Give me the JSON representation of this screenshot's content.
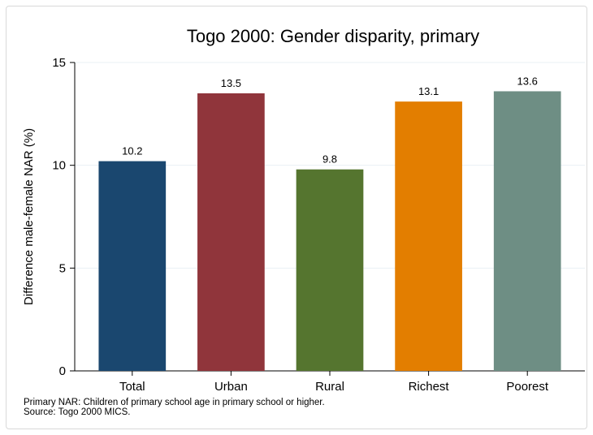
{
  "chart_data": {
    "type": "bar",
    "title": "Togo 2000: Gender disparity, primary",
    "xlabel": "",
    "ylabel": "Difference male-female NAR (%)",
    "categories": [
      "Total",
      "Urban",
      "Rural",
      "Richest",
      "Poorest"
    ],
    "values": [
      10.2,
      13.5,
      9.8,
      13.1,
      13.6
    ],
    "value_labels": [
      "10.2",
      "13.5",
      "9.8",
      "13.1",
      "13.6"
    ],
    "colors": [
      "#1a476f",
      "#90353b",
      "#55752f",
      "#e37e00",
      "#6e8e84"
    ],
    "ylim": [
      0,
      15
    ],
    "yticks": [
      0,
      5,
      10,
      15
    ],
    "grid": true,
    "legend": "none"
  },
  "notes": {
    "line1": "Primary NAR: Children of primary school age in primary school or higher.",
    "line2": "Source: Togo 2000 MICS."
  }
}
